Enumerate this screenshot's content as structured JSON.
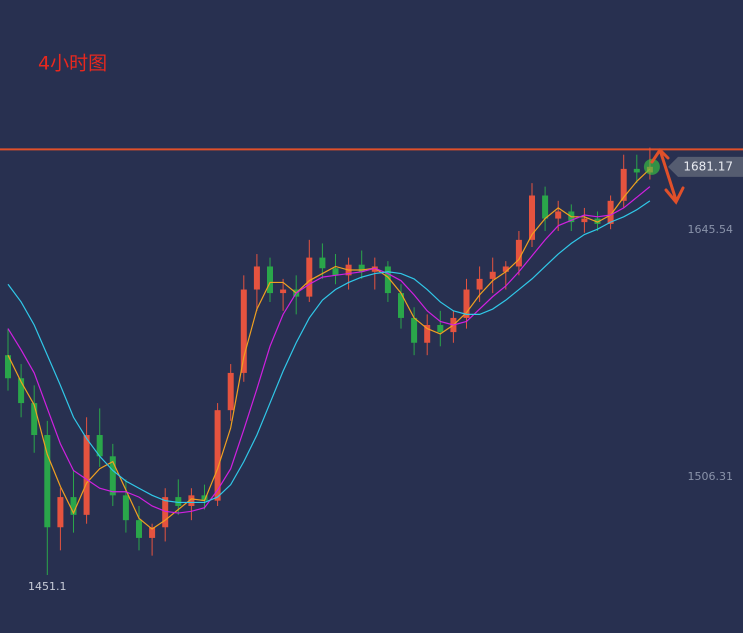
{
  "chart_data": {
    "type": "candlestick",
    "title": "4小时图",
    "open": [
      1575,
      1562,
      1548,
      1530,
      1478,
      1495,
      1485,
      1530,
      1518,
      1496,
      1482,
      1472,
      1478,
      1495,
      1490,
      1496,
      1493,
      1544,
      1565,
      1612,
      1625,
      1610,
      1612,
      1608,
      1630,
      1624,
      1620,
      1626,
      1622,
      1625,
      1610,
      1596,
      1582,
      1592,
      1588,
      1596,
      1612,
      1618,
      1622,
      1625,
      1640,
      1665,
      1652,
      1656,
      1650,
      1652,
      1649,
      1662,
      1680,
      1678
    ],
    "high": [
      1590,
      1570,
      1558,
      1538,
      1500,
      1510,
      1540,
      1545,
      1525,
      1505,
      1490,
      1480,
      1500,
      1505,
      1500,
      1502,
      1548,
      1570,
      1620,
      1632,
      1630,
      1618,
      1620,
      1640,
      1638,
      1632,
      1630,
      1634,
      1630,
      1628,
      1615,
      1602,
      1598,
      1600,
      1600,
      1618,
      1625,
      1630,
      1628,
      1645,
      1672,
      1670,
      1662,
      1660,
      1658,
      1656,
      1665,
      1688,
      1688,
      1692
    ],
    "low": [
      1555,
      1540,
      1520,
      1451.1,
      1465,
      1475,
      1480,
      1512,
      1490,
      1475,
      1465,
      1462,
      1470,
      1485,
      1482,
      1488,
      1490,
      1538,
      1560,
      1600,
      1605,
      1600,
      1598,
      1605,
      1618,
      1615,
      1612,
      1618,
      1612,
      1605,
      1590,
      1575,
      1575,
      1580,
      1582,
      1590,
      1605,
      1610,
      1612,
      1620,
      1636,
      1645,
      1645,
      1645,
      1644,
      1645,
      1646,
      1658,
      1672,
      1674
    ],
    "close": [
      1562,
      1548,
      1530,
      1478,
      1495,
      1485,
      1530,
      1518,
      1496,
      1482,
      1472,
      1478,
      1495,
      1490,
      1496,
      1493,
      1544,
      1565,
      1612,
      1625,
      1610,
      1612,
      1608,
      1630,
      1624,
      1620,
      1626,
      1622,
      1625,
      1610,
      1596,
      1582,
      1592,
      1588,
      1596,
      1612,
      1618,
      1622,
      1625,
      1640,
      1665,
      1652,
      1656,
      1650,
      1652,
      1649,
      1662,
      1680,
      1678,
      1681.17
    ],
    "up_color": "#e5533f",
    "down_color": "#2aa64a",
    "moving_averages": [
      {
        "color": "#f0a020",
        "values": [
          1575,
          1560,
          1547,
          1519,
          1501,
          1486,
          1503,
          1511,
          1515,
          1499,
          1483,
          1477,
          1482,
          1488,
          1494,
          1493,
          1511,
          1534,
          1574,
          1601,
          1616,
          1616,
          1610,
          1617,
          1621,
          1625,
          1623,
          1623,
          1624,
          1619,
          1610,
          1596,
          1590,
          1587,
          1592,
          1599,
          1609,
          1617,
          1622,
          1629,
          1643,
          1652,
          1658,
          1653,
          1653,
          1650,
          1654,
          1664,
          1673,
          1680
        ]
      },
      {
        "color": "#d020e0",
        "values": [
          1590,
          1578,
          1565,
          1545,
          1525,
          1510,
          1505,
          1500,
          1498,
          1498,
          1495,
          1490,
          1487,
          1486,
          1487,
          1489,
          1499,
          1511,
          1533,
          1556,
          1580,
          1598,
          1610,
          1615,
          1619,
          1620,
          1621,
          1622,
          1624,
          1621,
          1617,
          1609,
          1600,
          1594,
          1592,
          1594,
          1601,
          1608,
          1614,
          1622,
          1631,
          1640,
          1648,
          1651,
          1654,
          1653,
          1654,
          1658,
          1664,
          1670
        ]
      },
      {
        "color": "#30c8e8",
        "values": [
          1615,
          1605,
          1592,
          1575,
          1558,
          1540,
          1528,
          1518,
          1510,
          1504,
          1500,
          1496,
          1493,
          1492,
          1492,
          1492,
          1495,
          1502,
          1515,
          1530,
          1548,
          1566,
          1582,
          1596,
          1606,
          1612,
          1616,
          1619,
          1621,
          1622,
          1621,
          1618,
          1612,
          1605,
          1600,
          1598,
          1598,
          1601,
          1606,
          1612,
          1618,
          1625,
          1632,
          1638,
          1643,
          1646,
          1650,
          1653,
          1657,
          1662
        ]
      }
    ],
    "resistance": 1691,
    "resistance_color": "#e0502a",
    "ylim": [
      1418.4,
      1775.2
    ],
    "yticks": [
      1506.31,
      1645.54
    ],
    "grid": false
  }
}
